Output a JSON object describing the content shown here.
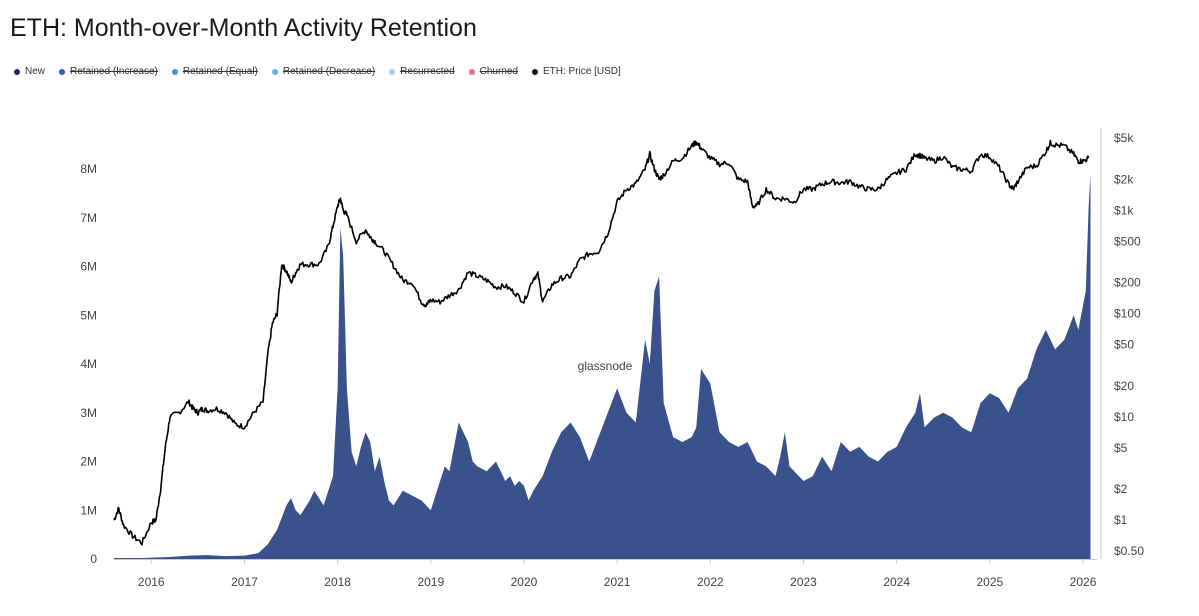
{
  "title": "ETH: Month-over-Month Activity Retention",
  "watermark": "glassnode",
  "legend": [
    {
      "label": "New",
      "color": "#1b2a5e",
      "hidden": false
    },
    {
      "label": "Retained (Increase)",
      "color": "#2a5db0",
      "hidden": true
    },
    {
      "label": "Retained (Equal)",
      "color": "#4b8fd6",
      "hidden": true
    },
    {
      "label": "Retained (Decrease)",
      "color": "#6aaee8",
      "hidden": true
    },
    {
      "label": "Resurrected",
      "color": "#a9c8ea",
      "hidden": true
    },
    {
      "label": "Churned",
      "color": "#e36a8e",
      "hidden": true
    },
    {
      "label": "ETH: Price [USD]",
      "color": "#111111",
      "hidden": false
    }
  ],
  "colors": {
    "area": "#3a528c",
    "price": "#000000",
    "axis": "#cccccc"
  },
  "chart_data": {
    "type": "area",
    "title": "ETH: Month-over-Month Activity Retention",
    "x_ticks": [
      "2016",
      "2017",
      "2018",
      "2019",
      "2020",
      "2021",
      "2022",
      "2023",
      "2024",
      "2025",
      "2026"
    ],
    "x_range": [
      2015.6,
      2026.15
    ],
    "y_left": {
      "range": [
        0,
        8800000
      ],
      "ticks": [
        0,
        1000000,
        2000000,
        3000000,
        4000000,
        5000000,
        6000000,
        7000000,
        8000000
      ],
      "tick_labels": [
        "0",
        "1M",
        "2M",
        "3M",
        "4M",
        "5M",
        "6M",
        "7M",
        "8M"
      ]
    },
    "y_right": {
      "scale": "log",
      "range": [
        0.42,
        6000
      ],
      "ticks": [
        0.5,
        1,
        2,
        5,
        10,
        20,
        50,
        100,
        200,
        500,
        1000,
        2000,
        5000
      ],
      "tick_labels": [
        "$0.50",
        "$1",
        "$2",
        "$5",
        "$10",
        "$20",
        "$50",
        "$100",
        "$200",
        "$500",
        "$1k",
        "$2k",
        "$5k"
      ]
    },
    "series": [
      {
        "name": "New",
        "axis": "left",
        "x": [
          2015.6,
          2015.9,
          2016.2,
          2016.4,
          2016.6,
          2016.8,
          2017.0,
          2017.15,
          2017.25,
          2017.35,
          2017.45,
          2017.5,
          2017.55,
          2017.6,
          2017.7,
          2017.75,
          2017.85,
          2017.95,
          2018.0,
          2018.03,
          2018.06,
          2018.1,
          2018.15,
          2018.2,
          2018.25,
          2018.3,
          2018.35,
          2018.4,
          2018.45,
          2018.5,
          2018.55,
          2018.6,
          2018.7,
          2018.8,
          2018.9,
          2019.0,
          2019.1,
          2019.15,
          2019.2,
          2019.3,
          2019.4,
          2019.45,
          2019.5,
          2019.6,
          2019.7,
          2019.8,
          2019.85,
          2019.9,
          2019.95,
          2020.0,
          2020.05,
          2020.1,
          2020.2,
          2020.3,
          2020.4,
          2020.5,
          2020.6,
          2020.7,
          2020.8,
          2020.9,
          2021.0,
          2021.1,
          2021.2,
          2021.3,
          2021.35,
          2021.4,
          2021.45,
          2021.5,
          2021.6,
          2021.7,
          2021.8,
          2021.85,
          2021.9,
          2022.0,
          2022.1,
          2022.2,
          2022.3,
          2022.4,
          2022.5,
          2022.6,
          2022.7,
          2022.75,
          2022.8,
          2022.85,
          2022.9,
          2023.0,
          2023.1,
          2023.2,
          2023.3,
          2023.4,
          2023.5,
          2023.6,
          2023.7,
          2023.8,
          2023.9,
          2024.0,
          2024.1,
          2024.2,
          2024.25,
          2024.3,
          2024.4,
          2024.5,
          2024.6,
          2024.7,
          2024.8,
          2024.9,
          2025.0,
          2025.1,
          2025.2,
          2025.3,
          2025.4,
          2025.5,
          2025.6,
          2025.7,
          2025.8,
          2025.9,
          2025.95,
          2026.0,
          2026.03,
          2026.06,
          2026.08
        ],
        "values": [
          20000,
          20000,
          40000,
          70000,
          80000,
          60000,
          70000,
          120000,
          300000,
          600000,
          1100000,
          1250000,
          1000000,
          900000,
          1200000,
          1400000,
          1100000,
          1700000,
          3500000,
          6800000,
          6200000,
          3500000,
          2200000,
          1900000,
          2300000,
          2600000,
          2400000,
          1800000,
          2100000,
          1600000,
          1200000,
          1100000,
          1400000,
          1300000,
          1200000,
          1000000,
          1600000,
          1900000,
          1800000,
          2800000,
          2400000,
          2000000,
          1900000,
          1800000,
          2000000,
          1600000,
          1700000,
          1500000,
          1600000,
          1500000,
          1200000,
          1400000,
          1700000,
          2200000,
          2600000,
          2800000,
          2500000,
          2000000,
          2500000,
          3000000,
          3500000,
          3000000,
          2800000,
          4500000,
          4000000,
          5500000,
          5800000,
          3200000,
          2500000,
          2400000,
          2500000,
          2700000,
          3900000,
          3600000,
          2600000,
          2400000,
          2300000,
          2400000,
          2000000,
          1900000,
          1700000,
          2100000,
          2600000,
          1900000,
          1800000,
          1600000,
          1700000,
          2100000,
          1800000,
          2400000,
          2200000,
          2300000,
          2100000,
          2000000,
          2200000,
          2300000,
          2700000,
          3000000,
          3400000,
          2700000,
          2900000,
          3000000,
          2900000,
          2700000,
          2600000,
          3200000,
          3400000,
          3300000,
          3000000,
          3500000,
          3700000,
          4300000,
          4700000,
          4300000,
          4500000,
          5000000,
          4700000,
          5200000,
          5500000,
          7200000,
          7900000
        ]
      },
      {
        "name": "ETH: Price [USD]",
        "axis": "right",
        "x": [
          2015.6,
          2015.65,
          2015.7,
          2015.8,
          2015.9,
          2016.0,
          2016.05,
          2016.1,
          2016.15,
          2016.2,
          2016.3,
          2016.4,
          2016.45,
          2016.5,
          2016.55,
          2016.6,
          2016.7,
          2016.8,
          2016.9,
          2017.0,
          2017.1,
          2017.2,
          2017.25,
          2017.3,
          2017.35,
          2017.4,
          2017.45,
          2017.5,
          2017.55,
          2017.6,
          2017.7,
          2017.8,
          2017.9,
          2017.95,
          2018.0,
          2018.03,
          2018.06,
          2018.1,
          2018.2,
          2018.3,
          2018.35,
          2018.4,
          2018.5,
          2018.6,
          2018.7,
          2018.8,
          2018.9,
          2018.95,
          2019.0,
          2019.1,
          2019.2,
          2019.3,
          2019.4,
          2019.5,
          2019.6,
          2019.7,
          2019.8,
          2019.9,
          2020.0,
          2020.1,
          2020.15,
          2020.2,
          2020.3,
          2020.4,
          2020.5,
          2020.6,
          2020.7,
          2020.8,
          2020.9,
          2021.0,
          2021.1,
          2021.2,
          2021.3,
          2021.35,
          2021.4,
          2021.45,
          2021.5,
          2021.6,
          2021.7,
          2021.8,
          2021.85,
          2021.9,
          2022.0,
          2022.1,
          2022.2,
          2022.3,
          2022.4,
          2022.45,
          2022.5,
          2022.6,
          2022.7,
          2022.8,
          2022.9,
          2023.0,
          2023.1,
          2023.2,
          2023.3,
          2023.4,
          2023.5,
          2023.6,
          2023.7,
          2023.8,
          2023.9,
          2024.0,
          2024.1,
          2024.2,
          2024.25,
          2024.3,
          2024.4,
          2024.5,
          2024.6,
          2024.7,
          2024.8,
          2024.9,
          2025.0,
          2025.1,
          2025.2,
          2025.25,
          2025.3,
          2025.4,
          2025.5,
          2025.6,
          2025.65,
          2025.7,
          2025.8,
          2025.9,
          2025.95,
          2026.0,
          2026.06
        ],
        "values": [
          1.0,
          1.3,
          0.9,
          0.7,
          0.6,
          0.95,
          1.0,
          2.0,
          5.0,
          10.0,
          11.0,
          14.0,
          12.0,
          11.0,
          12.0,
          11.5,
          12.0,
          11.0,
          8.5,
          8.0,
          11.0,
          14.0,
          40.0,
          80.0,
          100.0,
          300.0,
          260.0,
          200.0,
          250.0,
          300.0,
          300.0,
          300.0,
          450.0,
          700.0,
          1100.0,
          1300.0,
          1000.0,
          900.0,
          500.0,
          650.0,
          550.0,
          500.0,
          400.0,
          290.0,
          210.0,
          200.0,
          130.0,
          120.0,
          135.0,
          130.0,
          150.0,
          170.0,
          250.0,
          230.0,
          210.0,
          180.0,
          185.0,
          160.0,
          130.0,
          220.0,
          240.0,
          130.0,
          190.0,
          220.0,
          230.0,
          330.0,
          380.0,
          400.0,
          600.0,
          1200.0,
          1600.0,
          1800.0,
          2500.0,
          3500.0,
          2500.0,
          2000.0,
          2200.0,
          3000.0,
          3200.0,
          4200.0,
          4600.0,
          4000.0,
          3200.0,
          2800.0,
          2900.0,
          2000.0,
          1900.0,
          1100.0,
          1100.0,
          1600.0,
          1300.0,
          1300.0,
          1200.0,
          1600.0,
          1600.0,
          1800.0,
          1900.0,
          1850.0,
          1900.0,
          1700.0,
          1600.0,
          1600.0,
          2000.0,
          2300.0,
          2500.0,
          3500.0,
          3400.0,
          3200.0,
          3000.0,
          3300.0,
          2600.0,
          2500.0,
          2400.0,
          3500.0,
          3300.0,
          2600.0,
          1800.0,
          1600.0,
          1900.0,
          2600.0,
          2700.0,
          3700.0,
          4500.0,
          4300.0,
          4200.0,
          3500.0,
          3000.0,
          3000.0,
          3200.0
        ]
      }
    ]
  }
}
